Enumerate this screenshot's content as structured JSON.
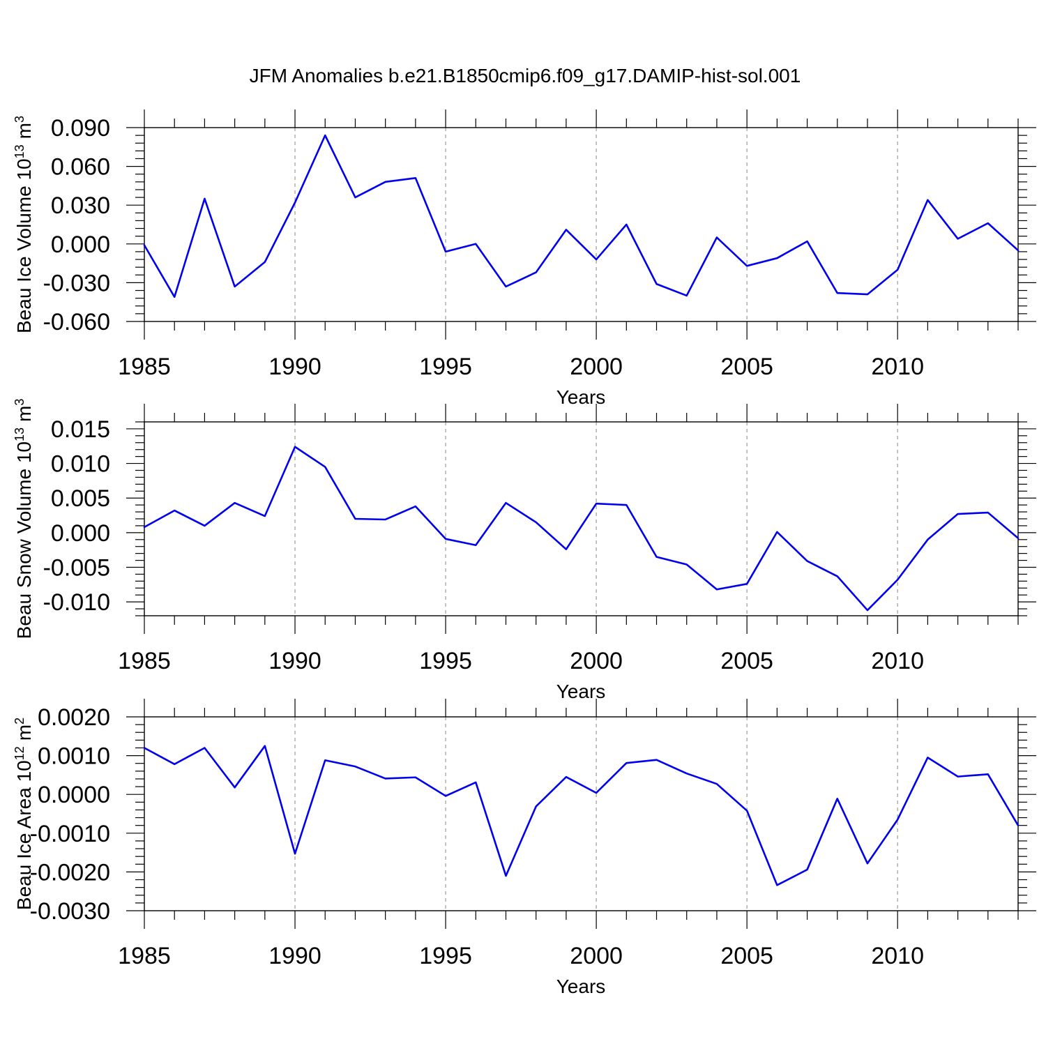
{
  "title": "JFM Anomalies b.e21.B1850cmip6.f09_g17.DAMIP-hist-sol.001",
  "chart_data": [
    {
      "type": "line",
      "ylabel": "Beau Ice Volume 10",
      "ylabel_exp": "13",
      "ylabel_unit": "m",
      "ylabel_unit_exp": "3",
      "xlabel": "Years",
      "xlim": [
        1985,
        2014
      ],
      "ylim": [
        -0.06,
        0.09
      ],
      "yticks": [
        -0.06,
        -0.03,
        0.0,
        0.03,
        0.06,
        0.09
      ],
      "ytick_labels": [
        "-0.060",
        "-0.030",
        "0.000",
        "0.030",
        "0.060",
        "0.090"
      ],
      "xticks": [
        1985,
        1990,
        1995,
        2000,
        2005,
        2010
      ],
      "xtick_labels": [
        "1985",
        "1990",
        "1995",
        "2000",
        "2005",
        "2010"
      ],
      "grid": "vertical dashed at major x ticks",
      "series": [
        {
          "color": "#0000ee",
          "x": [
            1985,
            1986,
            1987,
            1988,
            1989,
            1990,
            1991,
            1992,
            1993,
            1994,
            1995,
            1996,
            1997,
            1998,
            1999,
            2000,
            2001,
            2002,
            2003,
            2004,
            2005,
            2006,
            2007,
            2008,
            2009,
            2010,
            2011,
            2012,
            2013,
            2014
          ],
          "values": [
            -0.001,
            -0.041,
            0.035,
            -0.033,
            -0.014,
            0.032,
            0.084,
            0.036,
            0.048,
            0.051,
            -0.006,
            0.0,
            -0.033,
            -0.022,
            0.011,
            -0.012,
            0.015,
            -0.031,
            -0.04,
            0.005,
            -0.017,
            -0.011,
            0.002,
            -0.038,
            -0.039,
            -0.02,
            0.034,
            0.004,
            0.016,
            -0.005
          ]
        }
      ]
    },
    {
      "type": "line",
      "ylabel": "Beau Snow Volume 10",
      "ylabel_exp": "13",
      "ylabel_unit": "m",
      "ylabel_unit_exp": "3",
      "xlabel": "Years",
      "xlim": [
        1985,
        2014
      ],
      "ylim": [
        -0.012,
        0.016
      ],
      "yticks": [
        -0.01,
        -0.005,
        0.0,
        0.005,
        0.01,
        0.015
      ],
      "ytick_labels": [
        "-0.010",
        "-0.005",
        "0.000",
        "0.005",
        "0.010",
        "0.015"
      ],
      "xticks": [
        1985,
        1990,
        1995,
        2000,
        2005,
        2010
      ],
      "xtick_labels": [
        "1985",
        "1990",
        "1995",
        "2000",
        "2005",
        "2010"
      ],
      "grid": "vertical dashed at major x ticks",
      "series": [
        {
          "color": "#0000ee",
          "x": [
            1985,
            1986,
            1987,
            1988,
            1989,
            1990,
            1991,
            1992,
            1993,
            1994,
            1995,
            1996,
            1997,
            1998,
            1999,
            2000,
            2001,
            2002,
            2003,
            2004,
            2005,
            2006,
            2007,
            2008,
            2009,
            2010,
            2011,
            2012,
            2013,
            2014
          ],
          "values": [
            0.0008,
            0.0032,
            0.001,
            0.0043,
            0.0024,
            0.0124,
            0.0095,
            0.002,
            0.0019,
            0.0038,
            -0.0009,
            -0.0018,
            0.0043,
            0.0015,
            -0.0024,
            0.0042,
            0.004,
            -0.0035,
            -0.0046,
            -0.0082,
            -0.0074,
            0.0001,
            -0.0041,
            -0.0063,
            -0.0112,
            -0.0068,
            -0.001,
            0.0027,
            0.0029,
            -0.0008
          ]
        }
      ]
    },
    {
      "type": "line",
      "ylabel": "Beau Ice Area 10",
      "ylabel_exp": "12",
      "ylabel_unit": "m",
      "ylabel_unit_exp": "2",
      "xlabel": "Years",
      "xlim": [
        1985,
        2014
      ],
      "ylim": [
        -0.003,
        0.002
      ],
      "yticks": [
        -0.003,
        -0.002,
        -0.001,
        0.0,
        0.001,
        0.002
      ],
      "ytick_labels": [
        "-0.0030",
        "-0.0020",
        "-0.0010",
        "0.0000",
        "0.0010",
        "0.0020"
      ],
      "xticks": [
        1985,
        1990,
        1995,
        2000,
        2005,
        2010
      ],
      "xtick_labels": [
        "1985",
        "1990",
        "1995",
        "2000",
        "2005",
        "2010"
      ],
      "grid": "vertical dashed at major x ticks",
      "series": [
        {
          "color": "#0000ee",
          "x": [
            1985,
            1986,
            1987,
            1988,
            1989,
            1990,
            1991,
            1992,
            1993,
            1994,
            1995,
            1996,
            1997,
            1998,
            1999,
            2000,
            2001,
            2002,
            2003,
            2004,
            2005,
            2006,
            2007,
            2008,
            2009,
            2010,
            2011,
            2012,
            2013,
            2014
          ],
          "values": [
            0.0012,
            0.00078,
            0.0012,
            0.00018,
            0.00125,
            -0.00153,
            0.00088,
            0.00072,
            0.00041,
            0.00044,
            -4e-05,
            0.00031,
            -0.0021,
            -0.00031,
            0.00045,
            4e-05,
            0.00081,
            0.00089,
            0.00054,
            0.00027,
            -0.00042,
            -0.00234,
            -0.00194,
            -0.00011,
            -0.00178,
            -0.00065,
            0.00095,
            0.00046,
            0.00052,
            -0.0008
          ]
        }
      ]
    }
  ]
}
